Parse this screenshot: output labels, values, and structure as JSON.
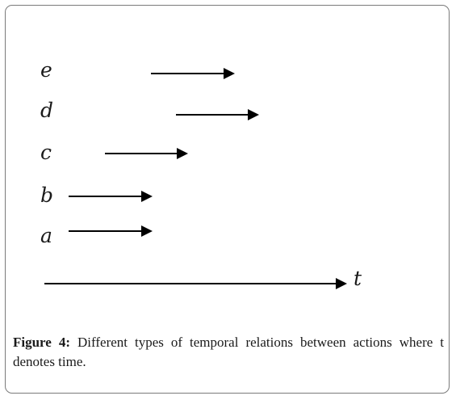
{
  "figure": {
    "events": [
      {
        "label": "e"
      },
      {
        "label": "d"
      },
      {
        "label": "c"
      },
      {
        "label": "b"
      },
      {
        "label": "a"
      }
    ],
    "axis_label": "t",
    "caption_label": "Figure 4:",
    "caption_text": " Different types of temporal relations between actions where t denotes time."
  }
}
